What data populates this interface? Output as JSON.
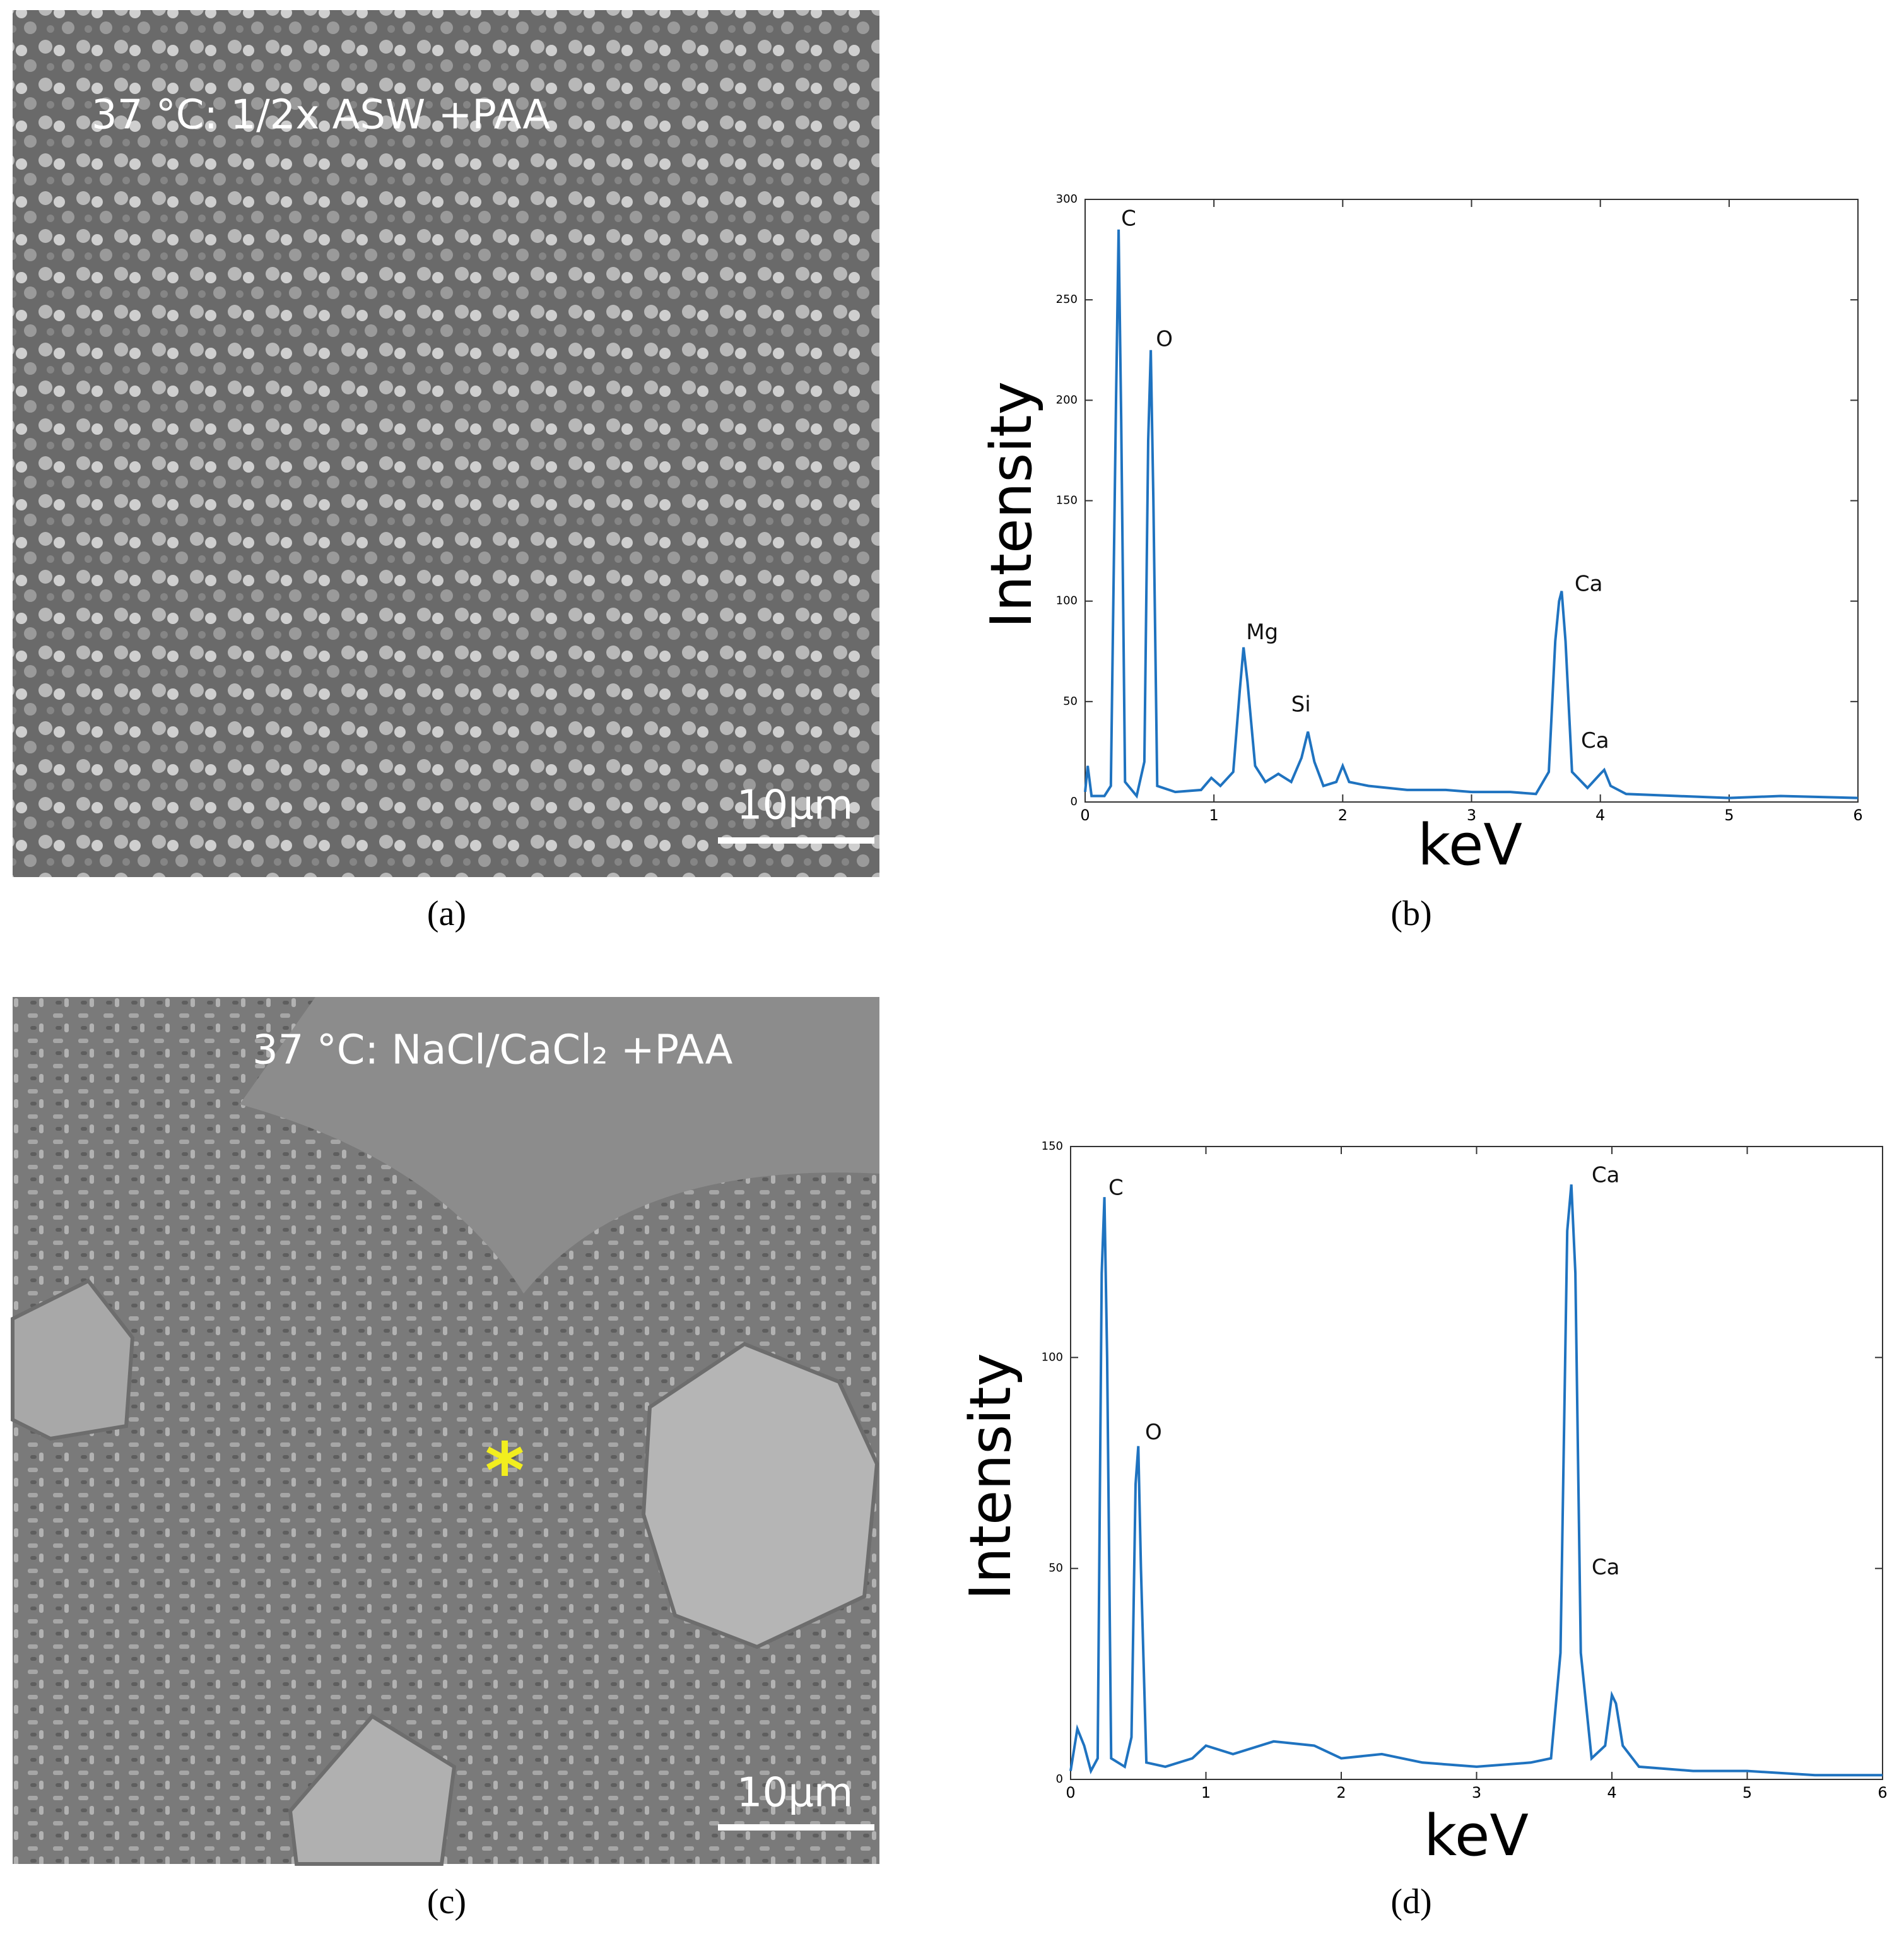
{
  "panels": [
    {
      "title": "37 °C: 1/2x ASW +PAA",
      "scale_bar": "10μm",
      "caption": "(a)"
    },
    {
      "title": "37 °C: NaCl/CaCl₂ +PAA",
      "scale_bar": "10μm",
      "caption": "(c)",
      "marker": "*"
    }
  ],
  "chart_data": [
    {
      "type": "line",
      "caption": "(b)",
      "x_label": "keV",
      "y_label": "Intensity",
      "color": "#1f73c0",
      "xlim": [
        0,
        6
      ],
      "xticks": [
        0,
        1,
        2,
        3,
        4,
        5,
        6
      ],
      "ylim": [
        0,
        300
      ],
      "yticks": [
        0,
        50,
        100,
        150,
        200,
        250,
        300
      ],
      "annotations": [
        {
          "text": "C",
          "x": 0.28,
          "y": 290
        },
        {
          "text": "O",
          "x": 0.55,
          "y": 230
        },
        {
          "text": "Mg",
          "x": 1.25,
          "y": 84
        },
        {
          "text": "Si",
          "x": 1.6,
          "y": 48
        },
        {
          "text": "Ca",
          "x": 3.8,
          "y": 108
        },
        {
          "text": "Ca",
          "x": 3.85,
          "y": 30
        }
      ],
      "x": [
        0,
        0.02,
        0.05,
        0.15,
        0.2,
        0.24,
        0.26,
        0.28,
        0.31,
        0.4,
        0.46,
        0.49,
        0.51,
        0.53,
        0.56,
        0.7,
        0.9,
        0.98,
        1.05,
        1.15,
        1.2,
        1.23,
        1.26,
        1.32,
        1.4,
        1.5,
        1.6,
        1.68,
        1.73,
        1.78,
        1.85,
        1.95,
        2.0,
        2.05,
        2.2,
        2.5,
        2.8,
        3.0,
        3.3,
        3.5,
        3.6,
        3.65,
        3.68,
        3.7,
        3.73,
        3.78,
        3.9,
        4.0,
        4.03,
        4.08,
        4.2,
        4.6,
        5.0,
        5.4,
        6.0
      ],
      "values": [
        5,
        18,
        3,
        3,
        8,
        200,
        285,
        190,
        10,
        3,
        20,
        180,
        225,
        150,
        8,
        5,
        6,
        12,
        8,
        15,
        55,
        77,
        60,
        18,
        10,
        14,
        10,
        22,
        35,
        20,
        8,
        10,
        18,
        10,
        8,
        6,
        6,
        5,
        5,
        4,
        15,
        80,
        100,
        105,
        80,
        15,
        7,
        14,
        16,
        8,
        4,
        3,
        2,
        3,
        2
      ]
    },
    {
      "type": "line",
      "caption": "(d)",
      "x_label": "keV",
      "y_label": "Intensity",
      "color": "#1f73c0",
      "xlim": [
        0,
        6
      ],
      "xticks": [
        0,
        1,
        2,
        3,
        4,
        5,
        6
      ],
      "ylim": [
        0,
        150
      ],
      "yticks": [
        0,
        50,
        100,
        150
      ],
      "annotations": [
        {
          "text": "C",
          "x": 0.28,
          "y": 140
        },
        {
          "text": "O",
          "x": 0.55,
          "y": 82
        },
        {
          "text": "Ca",
          "x": 3.85,
          "y": 143
        },
        {
          "text": "Ca",
          "x": 3.85,
          "y": 50
        }
      ],
      "x": [
        0,
        0.05,
        0.1,
        0.15,
        0.2,
        0.23,
        0.25,
        0.27,
        0.3,
        0.4,
        0.45,
        0.48,
        0.5,
        0.52,
        0.56,
        0.7,
        0.9,
        1.0,
        1.2,
        1.5,
        1.8,
        2.0,
        2.3,
        2.6,
        3.0,
        3.4,
        3.55,
        3.62,
        3.67,
        3.7,
        3.73,
        3.77,
        3.85,
        3.95,
        4.0,
        4.03,
        4.08,
        4.2,
        4.6,
        5.0,
        5.5,
        6.0
      ],
      "values": [
        2,
        12,
        8,
        2,
        5,
        120,
        138,
        100,
        5,
        3,
        10,
        70,
        79,
        50,
        4,
        3,
        5,
        8,
        6,
        9,
        8,
        5,
        6,
        4,
        3,
        4,
        5,
        30,
        130,
        141,
        120,
        30,
        5,
        8,
        20,
        18,
        8,
        3,
        2,
        2,
        1,
        1
      ]
    }
  ]
}
